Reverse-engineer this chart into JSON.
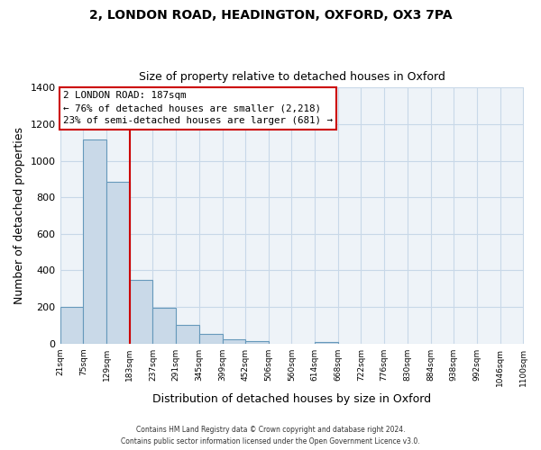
{
  "title1": "2, LONDON ROAD, HEADINGTON, OXFORD, OX3 7PA",
  "title2": "Size of property relative to detached houses in Oxford",
  "xlabel": "Distribution of detached houses by size in Oxford",
  "ylabel": "Number of detached properties",
  "bar_left_edges": [
    21,
    75,
    129,
    183,
    237,
    291,
    345,
    399,
    452,
    506,
    560,
    614,
    668,
    722,
    776,
    830,
    884,
    938,
    992,
    1046
  ],
  "bar_heights": [
    200,
    1115,
    885,
    350,
    195,
    100,
    55,
    25,
    15,
    0,
    0,
    10,
    0,
    0,
    0,
    0,
    0,
    0,
    0,
    0
  ],
  "bin_width": 54,
  "bar_color": "#c9d9e8",
  "bar_edge_color": "#6699bb",
  "vline_x": 183,
  "vline_color": "#cc0000",
  "ylim": [
    0,
    1400
  ],
  "yticks": [
    0,
    200,
    400,
    600,
    800,
    1000,
    1200,
    1400
  ],
  "xtick_labels": [
    "21sqm",
    "75sqm",
    "129sqm",
    "183sqm",
    "237sqm",
    "291sqm",
    "345sqm",
    "399sqm",
    "452sqm",
    "506sqm",
    "560sqm",
    "614sqm",
    "668sqm",
    "722sqm",
    "776sqm",
    "830sqm",
    "884sqm",
    "938sqm",
    "992sqm",
    "1046sqm",
    "1100sqm"
  ],
  "annotation_title": "2 LONDON ROAD: 187sqm",
  "annotation_line1": "← 76% of detached houses are smaller (2,218)",
  "annotation_line2": "23% of semi-detached houses are larger (681) →",
  "annotation_box_color": "#ffffff",
  "annotation_box_edge": "#cc0000",
  "footer1": "Contains HM Land Registry data © Crown copyright and database right 2024.",
  "footer2": "Contains public sector information licensed under the Open Government Licence v3.0.",
  "bg_color": "#ffffff",
  "plot_bg_color": "#eef3f8",
  "grid_color": "#c8d8e8"
}
